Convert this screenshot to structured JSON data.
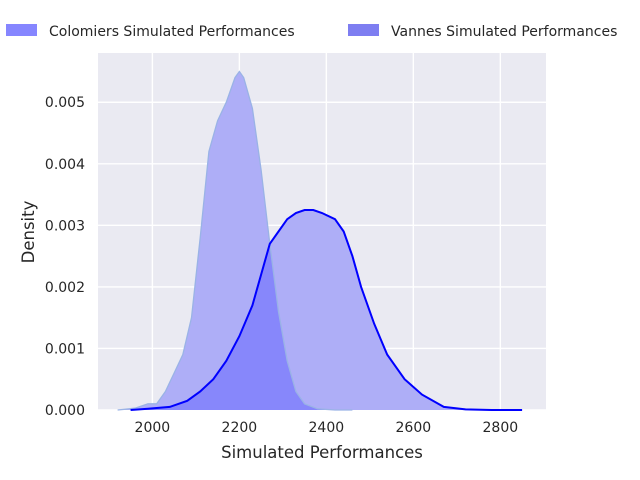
{
  "chart_data": {
    "type": "area",
    "title": "",
    "xlabel": "Simulated Performances",
    "ylabel": "Density",
    "xlim": [
      1875,
      2905
    ],
    "ylim": [
      0,
      0.0058
    ],
    "x_ticks": [
      2000,
      2200,
      2400,
      2600,
      2800
    ],
    "y_ticks": [
      0.0,
      0.001,
      0.002,
      0.003,
      0.004,
      0.005
    ],
    "y_tick_labels": [
      "0.000",
      "0.001",
      "0.002",
      "0.003",
      "0.004",
      "0.005"
    ],
    "grid": true,
    "legend_position": "top",
    "colors": {
      "plot_background": "#eaeaf2",
      "grid": "#ffffff",
      "fill_light": "#aeaef7",
      "fill_overlap": "#8787fb",
      "line_colomiers": "#9ab3e6",
      "line_vannes": "#0000ff",
      "legend_patch_colomiers": "#8080ff",
      "legend_patch_vannes": "#7070f0"
    },
    "series": [
      {
        "name": "Colomiers Simulated Performances",
        "x": [
          1920,
          1960,
          1990,
          2010,
          2030,
          2050,
          2070,
          2090,
          2110,
          2130,
          2150,
          2170,
          2190,
          2200,
          2210,
          2230,
          2250,
          2270,
          2290,
          2310,
          2330,
          2350,
          2380,
          2420,
          2460
        ],
        "values": [
          0.0,
          3e-05,
          0.0001,
          0.0001,
          0.0003,
          0.0006,
          0.0009,
          0.0015,
          0.0028,
          0.0042,
          0.0047,
          0.005,
          0.0054,
          0.0055,
          0.0054,
          0.0049,
          0.0039,
          0.0027,
          0.0016,
          0.0008,
          0.0003,
          0.0001,
          2e-05,
          0.0,
          0.0
        ]
      },
      {
        "name": "Vannes Simulated Performances",
        "x": [
          1950,
          1990,
          2040,
          2080,
          2110,
          2140,
          2170,
          2200,
          2230,
          2250,
          2270,
          2290,
          2310,
          2330,
          2350,
          2370,
          2390,
          2420,
          2440,
          2460,
          2480,
          2510,
          2540,
          2580,
          2620,
          2670,
          2720,
          2780,
          2850
        ],
        "values": [
          0.0,
          2e-05,
          5e-05,
          0.00015,
          0.0003,
          0.0005,
          0.0008,
          0.0012,
          0.0017,
          0.0022,
          0.0027,
          0.0029,
          0.0031,
          0.0032,
          0.00325,
          0.00325,
          0.0032,
          0.0031,
          0.0029,
          0.0025,
          0.002,
          0.0014,
          0.0009,
          0.0005,
          0.00025,
          5e-05,
          1e-05,
          0.0,
          0.0
        ]
      }
    ]
  }
}
